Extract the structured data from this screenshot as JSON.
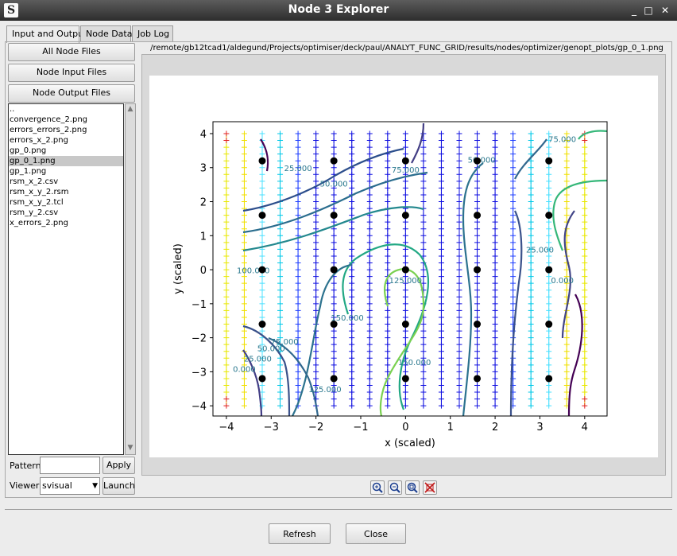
{
  "window": {
    "title": "Node 3 Explorer",
    "minimize": "_",
    "maximize": "□",
    "close": "✕"
  },
  "tabs": [
    {
      "label": "Input and Output"
    },
    {
      "label": "Node Data"
    },
    {
      "label": "Job Log"
    }
  ],
  "sidebar": {
    "all_files": "All Node Files",
    "input_files": "Node Input Files",
    "output_files": "Node Output Files",
    "files": [
      "..",
      "convergence_2.png",
      "errors_errors_2.png",
      "errors_x_2.png",
      "gp_0.png",
      "gp_0_1.png",
      "gp_1.png",
      "rsm_x_2.csv",
      "rsm_x_y_2.rsm",
      "rsm_x_y_2.tcl",
      "rsm_y_2.csv",
      "x_errors_2.png"
    ],
    "selected_index": 5,
    "pattern_label": "Pattern",
    "pattern_value": "",
    "apply": "Apply",
    "viewer_label": "Viewer",
    "viewer_value": "svisual",
    "launch": "Launch"
  },
  "viewer": {
    "path": "/remote/gb12tcad1/aldegund/Projects/optimiser/deck/paul/ANALYT_FUNC_GRID/results/nodes/optimizer/genopt_plots/gp_0_1.png"
  },
  "chart_data": {
    "type": "scatter",
    "xlabel": "x (scaled)",
    "ylabel": "y (scaled)",
    "xlim": [
      -4.3,
      4.5
    ],
    "ylim": [
      -4.3,
      4.35
    ],
    "xticks": [
      "−4",
      "−3",
      "−2",
      "−1",
      "0",
      "1",
      "2",
      "3",
      "4"
    ],
    "yticks": [
      "−4",
      "−3",
      "−2",
      "−1",
      "0",
      "1",
      "2",
      "3",
      "4"
    ],
    "xtick_values": [
      -4,
      -3,
      -2,
      -1,
      0,
      1,
      2,
      3,
      4
    ],
    "ytick_values": [
      -4,
      -3,
      -2,
      -1,
      0,
      1,
      2,
      3,
      4
    ],
    "sample_points": {
      "x": [
        -3.2,
        -1.6,
        0,
        1.6,
        3.2
      ],
      "y": [
        3.2,
        1.6,
        0,
        -1.6,
        -3.2
      ]
    },
    "grid_columns_x": [
      -4,
      -3.6,
      -3.2,
      -2.8,
      -2.4,
      -2.0,
      -1.6,
      -1.2,
      -0.8,
      -0.4,
      0,
      0.4,
      0.8,
      1.2,
      1.6,
      2.0,
      2.4,
      2.8,
      3.2,
      3.6,
      4.0
    ],
    "contour_labels": [
      {
        "text": "25.000",
        "x": -2.4,
        "y": 2.9
      },
      {
        "text": "50.000",
        "x": -1.6,
        "y": 2.45
      },
      {
        "text": "75.000",
        "x": 0.0,
        "y": 2.85
      },
      {
        "text": "50.000",
        "x": 1.7,
        "y": 3.15
      },
      {
        "text": "75.000",
        "x": 3.5,
        "y": 3.75
      },
      {
        "text": "100.000",
        "x": -3.4,
        "y": -0.1
      },
      {
        "text": "125.000",
        "x": 0.0,
        "y": -0.4
      },
      {
        "text": "25.000",
        "x": 3.0,
        "y": 0.5
      },
      {
        "text": "0.000",
        "x": 3.5,
        "y": -0.4
      },
      {
        "text": "150.000",
        "x": -1.3,
        "y": -1.5
      },
      {
        "text": "75.000",
        "x": -2.7,
        "y": -2.2
      },
      {
        "text": "50.000",
        "x": -3.0,
        "y": -2.4
      },
      {
        "text": "25.000",
        "x": -3.3,
        "y": -2.7
      },
      {
        "text": "0.000",
        "x": -3.6,
        "y": -3.0
      },
      {
        "text": "150.000",
        "x": 0.2,
        "y": -2.8
      },
      {
        "text": "125.000",
        "x": -1.8,
        "y": -3.6
      }
    ],
    "grid": false,
    "legend": "none"
  },
  "zoom_tools": [
    "zoom-in-icon",
    "zoom-out-icon",
    "zoom-fit-icon",
    "zoom-reset-icon"
  ],
  "footer": {
    "refresh": "Refresh",
    "close": "Close"
  }
}
